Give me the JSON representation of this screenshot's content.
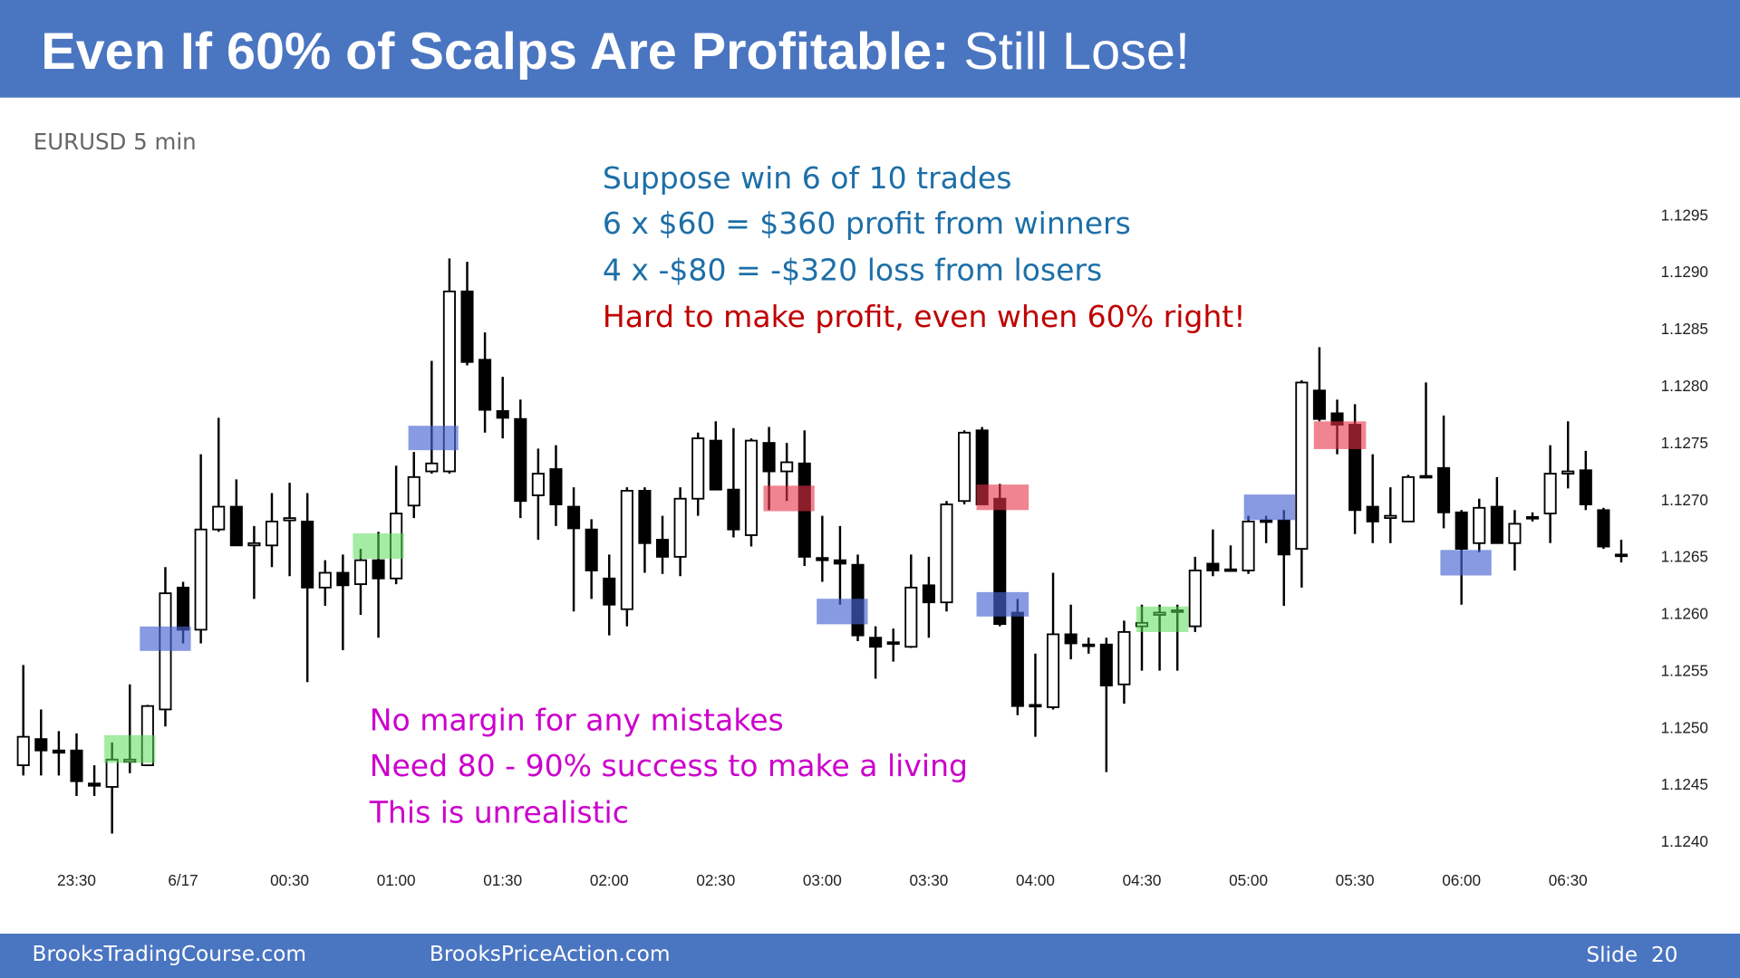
{
  "header": {
    "title_bold": "Even If 60% of Scalps Are Profitable:",
    "title_rest": "Still Lose!"
  },
  "footer": {
    "left": "BrooksTradingCourse.com",
    "middle": "BrooksPriceAction.com",
    "right": "Slide  20"
  },
  "chart_data": {
    "type": "candlestick",
    "title": "EURUSD 5 min",
    "annotations": [
      {
        "text": "Suppose win 6 of 10 trades",
        "color": "#1d6fa8"
      },
      {
        "text": "6 x $60 = $360 profit from winners",
        "color": "#1d6fa8"
      },
      {
        "text": "4 x -$80 = -$320 loss from losers",
        "color": "#1d6fa8"
      },
      {
        "text": "Hard to make profit, even when 60% right!",
        "color": "#c00000"
      },
      {
        "text": "No margin for any mistakes",
        "color": "#cc00cc"
      },
      {
        "text": "Need 80 - 90% success to make a living",
        "color": "#cc00cc"
      },
      {
        "text": "This is unrealistic",
        "color": "#cc00cc"
      }
    ],
    "categories": [
      null,
      null,
      null,
      "23:30",
      null,
      null,
      null,
      null,
      null,
      "6/17",
      null,
      null,
      null,
      null,
      null,
      "00:30",
      null,
      null,
      null,
      null,
      null,
      "01:00",
      null,
      null,
      null,
      null,
      null,
      "01:30",
      null,
      null,
      null,
      null,
      null,
      "02:00",
      null,
      null,
      null,
      null,
      null,
      "02:30",
      null,
      null,
      null,
      null,
      null,
      "03:00",
      null,
      null,
      null,
      null,
      null,
      "03:30",
      null,
      null,
      null,
      null,
      null,
      "04:00",
      null,
      null,
      null,
      null,
      null,
      "04:30",
      null,
      null,
      null,
      null,
      null,
      "05:00",
      null,
      null,
      null,
      null,
      null,
      "05:30",
      null,
      null,
      null,
      null,
      null,
      "06:00",
      null,
      null,
      null,
      null,
      null,
      "06:30",
      null,
      null,
      null
    ],
    "open": [
      1.12468,
      1.12491,
      1.12481,
      1.12481,
      1.12452,
      1.12449,
      1.12471,
      1.12468,
      1.12517,
      1.12624,
      1.12587,
      1.12675,
      1.12695,
      1.12661,
      1.12661,
      1.12683,
      1.12682,
      1.12624,
      1.12637,
      1.12627,
      1.12648,
      1.12632,
      1.12696,
      1.12726,
      1.12726,
      1.12884,
      1.12824,
      1.12779,
      1.12772,
      1.12705,
      1.12728,
      1.12695,
      1.12675,
      1.12632,
      1.12605,
      1.12709,
      1.12666,
      1.12651,
      1.12702,
      1.12753,
      1.1271,
      1.1267,
      1.12751,
      1.12726,
      1.12733,
      1.1265,
      1.12648,
      1.12644,
      1.1258,
      1.12576,
      1.12572,
      1.12626,
      1.12611,
      1.127,
      1.12762,
      1.12702,
      1.12602,
      1.12521,
      1.12519,
      1.12583,
      1.12574,
      1.12574,
      1.12539,
      1.1259,
      1.126,
      1.12603,
      1.1259,
      1.12645,
      1.12639,
      1.12639,
      1.12682,
      1.12683,
      1.12658,
      1.12797,
      1.12777,
      1.12767,
      1.12695,
      1.12685,
      1.12682,
      1.12722,
      1.12729,
      1.1269,
      1.12663,
      1.12695,
      1.12663,
      1.12685,
      1.12689,
      1.12724,
      1.12727,
      1.12692,
      1.12653
    ],
    "high": [
      1.12556,
      1.12517,
      1.12498,
      1.12496,
      1.12468,
      1.12488,
      1.12539,
      1.12521,
      1.12642,
      1.12629,
      1.12741,
      1.12773,
      1.12719,
      1.12678,
      1.12707,
      1.12716,
      1.12707,
      1.12648,
      1.12653,
      1.12658,
      1.12673,
      1.12731,
      1.12743,
      1.12823,
      1.12913,
      1.1291,
      1.12848,
      1.12809,
      1.12789,
      1.12746,
      1.12749,
      1.12712,
      1.12684,
      1.12653,
      1.12712,
      1.12712,
      1.12687,
      1.12712,
      1.1276,
      1.1277,
      1.12764,
      1.12755,
      1.12765,
      1.12751,
      1.12762,
      1.12687,
      1.12678,
      1.12653,
      1.1259,
      1.12588,
      1.12653,
      1.12651,
      1.127,
      1.12762,
      1.12765,
      1.12715,
      1.12614,
      1.12566,
      1.12637,
      1.12609,
      1.1258,
      1.1258,
      1.12595,
      1.12609,
      1.12609,
      1.12609,
      1.12651,
      1.12675,
      1.12661,
      1.12687,
      1.12687,
      1.12692,
      1.12806,
      1.12835,
      1.12789,
      1.12785,
      1.12741,
      1.12712,
      1.12723,
      1.12804,
      1.12775,
      1.12692,
      1.12702,
      1.12721,
      1.12692,
      1.1269,
      1.12749,
      1.1277,
      1.12744,
      1.12694,
      1.12666
    ],
    "low": [
      1.12459,
      1.12459,
      1.12459,
      1.12441,
      1.12441,
      1.12408,
      1.12461,
      1.12468,
      1.12502,
      1.12575,
      1.12575,
      1.12673,
      1.12661,
      1.12614,
      1.12642,
      1.12634,
      1.12541,
      1.12608,
      1.12569,
      1.126,
      1.1258,
      1.12627,
      1.12685,
      1.12724,
      1.12724,
      1.12819,
      1.1276,
      1.12755,
      1.12685,
      1.12666,
      1.12678,
      1.12603,
      1.12614,
      1.12582,
      1.1259,
      1.12637,
      1.12636,
      1.12634,
      1.12687,
      1.1271,
      1.12668,
      1.1266,
      1.12692,
      1.127,
      1.12643,
      1.12629,
      1.12609,
      1.12577,
      1.12544,
      1.12559,
      1.12571,
      1.1258,
      1.12603,
      1.12697,
      1.12697,
      1.1259,
      1.12512,
      1.12493,
      1.12517,
      1.12561,
      1.12566,
      1.12462,
      1.12522,
      1.12551,
      1.12551,
      1.12551,
      1.12585,
      1.12634,
      1.12638,
      1.12636,
      1.12663,
      1.12608,
      1.12624,
      1.1277,
      1.12741,
      1.12671,
      1.12663,
      1.12663,
      1.12682,
      1.1272,
      1.12676,
      1.12609,
      1.12655,
      1.12663,
      1.12639,
      1.12682,
      1.12663,
      1.12711,
      1.12692,
      1.12658,
      1.12646
    ],
    "close": [
      1.12493,
      1.12481,
      1.12479,
      1.12454,
      1.1245,
      1.12473,
      1.12473,
      1.1252,
      1.12619,
      1.12587,
      1.12675,
      1.12695,
      1.12661,
      1.12663,
      1.12682,
      1.12685,
      1.12624,
      1.12637,
      1.12626,
      1.12648,
      1.12632,
      1.12689,
      1.12721,
      1.12733,
      1.12884,
      1.12822,
      1.1278,
      1.12773,
      1.127,
      1.12724,
      1.12697,
      1.12676,
      1.12639,
      1.12609,
      1.12709,
      1.12663,
      1.12651,
      1.12702,
      1.12755,
      1.1271,
      1.12675,
      1.12753,
      1.12726,
      1.12734,
      1.12651,
      1.12648,
      1.12645,
      1.12582,
      1.12572,
      1.12575,
      1.12624,
      1.12611,
      1.12697,
      1.1276,
      1.12697,
      1.12592,
      1.1252,
      1.12521,
      1.12583,
      1.12575,
      1.12573,
      1.12538,
      1.12585,
      1.12593,
      1.12602,
      1.12604,
      1.12639,
      1.12639,
      1.1264,
      1.12682,
      1.12683,
      1.12653,
      1.12804,
      1.12772,
      1.12767,
      1.12692,
      1.12682,
      1.12687,
      1.12721,
      1.12721,
      1.1269,
      1.12658,
      1.12694,
      1.12663,
      1.1268,
      1.12686,
      1.12724,
      1.12726,
      1.12697,
      1.1266,
      1.12653
    ],
    "up_color": "#ffffff",
    "down_color": "#000000",
    "wick_color": "#000000",
    "ylim": [
      1.124,
      1.1295
    ],
    "yticks": [
      {
        "value": 1.124,
        "label": "1.1240"
      },
      1.1245,
      {
        "value": 1.125,
        "label": "1.1250"
      },
      1.1255,
      {
        "value": 1.126,
        "label": "1.1260"
      },
      1.1265,
      {
        "value": 1.127,
        "label": "1.1270"
      },
      1.1275,
      {
        "value": 1.128,
        "label": "1.1280"
      },
      1.1285,
      {
        "value": 1.129,
        "label": "1.1290"
      },
      1.1295
    ],
    "grid": false
  }
}
